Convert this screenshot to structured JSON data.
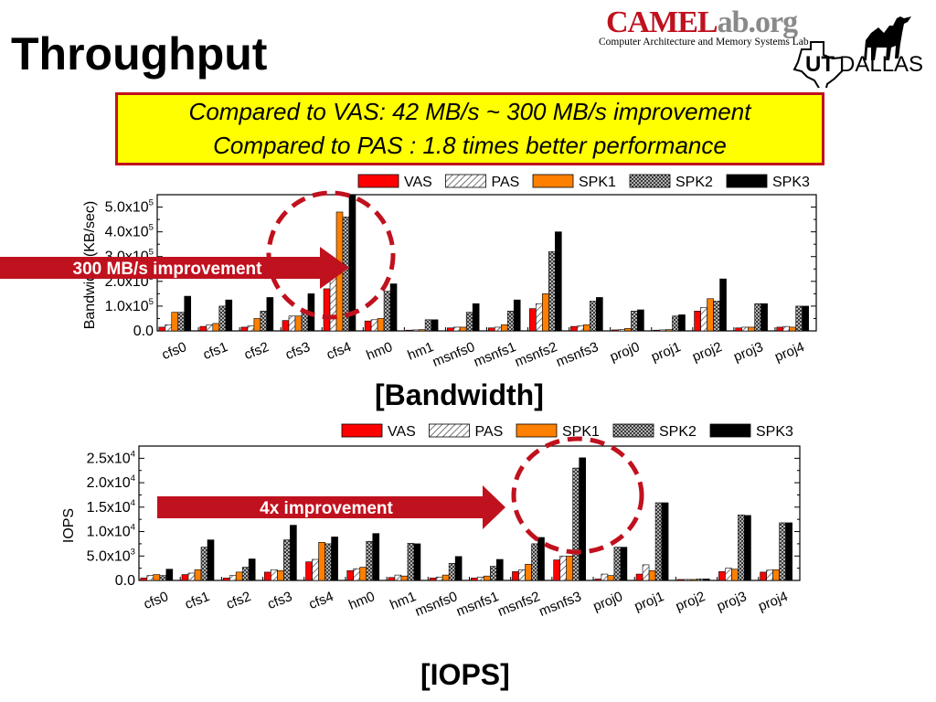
{
  "slide": {
    "title": "Throughput",
    "logo": {
      "brand_left": "CAMEL",
      "brand_right": "ab.org",
      "subtitle": "Computer Architecture and Memory Systems Lab",
      "ut_text": "UT",
      "dallas_text": "DALLAS"
    },
    "callout": {
      "line1": "Compared to VAS: 42 MB/s ~ 300 MB/s improvement",
      "line2": "Compared to PAS : 1.8 times better performance"
    },
    "bandwidth_arrow_label": "300 MB/s improvement",
    "iops_arrow_label": "4x improvement",
    "bandwidth_caption": "[Bandwidth]",
    "iops_caption": "[IOPS]",
    "colors": {
      "accent": "#c0111e",
      "callout_bg": "#ffff00"
    }
  },
  "chart_data": [
    {
      "type": "bar",
      "ylabel": "Bandwidth (KB/sec)",
      "ylim": [
        0,
        550000
      ],
      "ytick_labels": [
        "0.0",
        "1.0x10^5",
        "2.0x10^5",
        "3.0x10^5",
        "4.0x10^5",
        "5.0x10^5"
      ],
      "categories": [
        "cfs0",
        "cfs1",
        "cfs2",
        "cfs3",
        "cfs4",
        "hm0",
        "hm1",
        "msnfs0",
        "msnfs1",
        "msnfs2",
        "msnfs3",
        "proj0",
        "proj1",
        "proj2",
        "proj3",
        "proj4"
      ],
      "series": [
        {
          "name": "VAS",
          "values": [
            15000,
            18000,
            15000,
            42000,
            170000,
            40000,
            3000,
            12000,
            12000,
            90000,
            18000,
            4000,
            3000,
            80000,
            12000,
            15000
          ]
        },
        {
          "name": "PAS",
          "values": [
            25000,
            25000,
            20000,
            60000,
            290000,
            45000,
            4000,
            15000,
            15000,
            110000,
            20000,
            5000,
            4000,
            95000,
            15000,
            18000
          ]
        },
        {
          "name": "SPK1",
          "values": [
            75000,
            30000,
            50000,
            60000,
            480000,
            50000,
            5000,
            15000,
            25000,
            150000,
            25000,
            10000,
            5000,
            130000,
            15000,
            15000
          ]
        },
        {
          "name": "SPK2",
          "values": [
            75000,
            100000,
            80000,
            75000,
            460000,
            160000,
            45000,
            75000,
            80000,
            320000,
            120000,
            80000,
            60000,
            120000,
            110000,
            100000
          ]
        },
        {
          "name": "SPK3",
          "values": [
            140000,
            125000,
            135000,
            150000,
            550000,
            190000,
            45000,
            110000,
            125000,
            400000,
            135000,
            85000,
            65000,
            210000,
            110000,
            100000
          ]
        }
      ],
      "legend": "top-right",
      "grid": false
    },
    {
      "type": "bar",
      "ylabel": "IOPS",
      "ylim": [
        0,
        27500
      ],
      "ytick_labels": [
        "0.0",
        "5.0x10^3",
        "1.0x10^4",
        "1.5x10^4",
        "2.0x10^4",
        "2.5x10^4"
      ],
      "categories": [
        "cfs0",
        "cfs1",
        "cfs2",
        "cfs3",
        "cfs4",
        "hm0",
        "hm1",
        "msnfs0",
        "msnfs1",
        "msnfs2",
        "msnfs3",
        "proj0",
        "proj1",
        "proj2",
        "proj3",
        "proj4"
      ],
      "series": [
        {
          "name": "VAS",
          "values": [
            500,
            1200,
            500,
            1700,
            3800,
            2000,
            600,
            500,
            500,
            1800,
            4200,
            300,
            1300,
            200,
            1800,
            1700
          ]
        },
        {
          "name": "PAS",
          "values": [
            1000,
            1500,
            1000,
            2200,
            4300,
            2400,
            1100,
            700,
            700,
            2200,
            5000,
            1300,
            3200,
            200,
            2500,
            2100
          ]
        },
        {
          "name": "SPK1",
          "values": [
            1200,
            2200,
            1700,
            2000,
            7800,
            2700,
            900,
            1100,
            900,
            3300,
            5000,
            1000,
            2000,
            200,
            2300,
            2200
          ]
        },
        {
          "name": "SPK2",
          "values": [
            1000,
            6800,
            2700,
            8300,
            7500,
            8000,
            7600,
            3500,
            2900,
            7500,
            23000,
            6800,
            15900,
            300,
            13400,
            11800
          ]
        },
        {
          "name": "SPK3",
          "values": [
            2300,
            8300,
            4400,
            11300,
            8900,
            9600,
            7500,
            4900,
            4300,
            8800,
            25100,
            6800,
            15900,
            300,
            13300,
            11800
          ]
        }
      ],
      "legend": "top-right",
      "grid": false
    }
  ]
}
